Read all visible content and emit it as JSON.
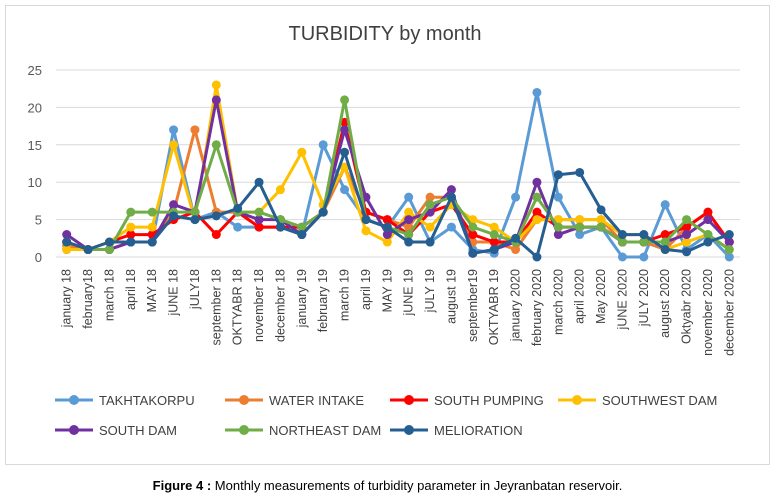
{
  "caption": {
    "label": "Figure 4 :",
    "text": " Monthly measurements of turbidity parameter in Jeyranbatan reservoir."
  },
  "chart_data": {
    "type": "line",
    "title": "TURBIDITY by month",
    "xlabel": "",
    "ylabel": "",
    "ylim": [
      0,
      25
    ],
    "yticks": [
      0,
      5,
      10,
      15,
      20,
      25
    ],
    "grid": true,
    "legend_position": "bottom",
    "categories": [
      "january 18",
      "february18",
      "march 18",
      "april 18",
      "MAY 18",
      "jUNE 18",
      "jULY18",
      "september 18",
      "OKTYABR 18",
      "november 18",
      "december 18",
      "january 19",
      "february 19",
      "march 19",
      "april 19",
      "MAY 19",
      "jUNE 19",
      "jULY 19",
      "august 19",
      "september19",
      "OKTYABR 19",
      "january 2020",
      "february 2020",
      "march 2020",
      "april 2020",
      "May 2020",
      "jUNE 2020",
      "jULY 2020",
      "august 2020",
      "Oktyabr 2020",
      "november 2020",
      "december 2020"
    ],
    "series": [
      {
        "name": "TAKHTAKORPU",
        "color": "#5b9bd5",
        "values": [
          1,
          1,
          1,
          2,
          2,
          17,
          5,
          6,
          4,
          4,
          4,
          3,
          15,
          9,
          5,
          4,
          8,
          2,
          4,
          1,
          0.5,
          8,
          22,
          8,
          3,
          4,
          0,
          0,
          7,
          1,
          3,
          0
        ]
      },
      {
        "name": "WATER INTAKE",
        "color": "#ed7d31",
        "values": [
          1.5,
          1,
          1,
          2,
          2,
          6,
          17,
          6,
          6,
          4,
          4,
          3,
          6,
          12,
          6,
          5,
          4,
          8,
          8,
          2,
          2,
          1,
          5,
          5,
          5,
          5,
          2,
          2,
          1,
          4,
          6,
          2
        ]
      },
      {
        "name": "SOUTH PUMPING",
        "color": "#ff0000",
        "values": [
          2,
          1,
          2,
          3,
          3,
          5,
          6,
          3,
          6,
          4,
          4,
          4,
          6,
          18,
          6,
          5,
          3,
          6,
          7,
          3,
          2,
          2,
          6,
          4,
          4,
          4,
          2,
          2,
          3,
          4,
          6,
          2
        ]
      },
      {
        "name": "SOUTHWEST DAM",
        "color": "#ffc000",
        "values": [
          1,
          1,
          2,
          4,
          4,
          15,
          5,
          23,
          6,
          6,
          9,
          14,
          7,
          12,
          3.5,
          2,
          6,
          4,
          7,
          5,
          4,
          2,
          5,
          5,
          5,
          5,
          3,
          3,
          1,
          2,
          3,
          1
        ]
      },
      {
        "name": "SOUTH DAM",
        "color": "#7030a0",
        "values": [
          3,
          1,
          1,
          2,
          2,
          7,
          6,
          21,
          6,
          5,
          5,
          3,
          6,
          17,
          8,
          3,
          5,
          6,
          9,
          0.5,
          1,
          2,
          10,
          3,
          4,
          4,
          2,
          2,
          2,
          3,
          5,
          2
        ]
      },
      {
        "name": "NORTHEAST DAM",
        "color": "#70ad47",
        "values": [
          2,
          1,
          1,
          6,
          6,
          6,
          6,
          15,
          6,
          6,
          5,
          4,
          6,
          21,
          5,
          4,
          3,
          7,
          8,
          4,
          3,
          2,
          8,
          4,
          4,
          4,
          2,
          2,
          2,
          5,
          3,
          1
        ]
      },
      {
        "name": "MELIORATION",
        "color": "#255e91",
        "values": [
          2,
          1,
          2,
          2,
          2,
          5.5,
          5,
          5.5,
          6.5,
          10,
          4,
          3,
          6,
          14,
          5,
          4,
          2,
          2,
          8,
          0.5,
          1,
          2.5,
          0,
          11,
          11.3,
          6.3,
          3,
          3,
          1,
          0.7,
          2,
          3
        ]
      }
    ]
  }
}
